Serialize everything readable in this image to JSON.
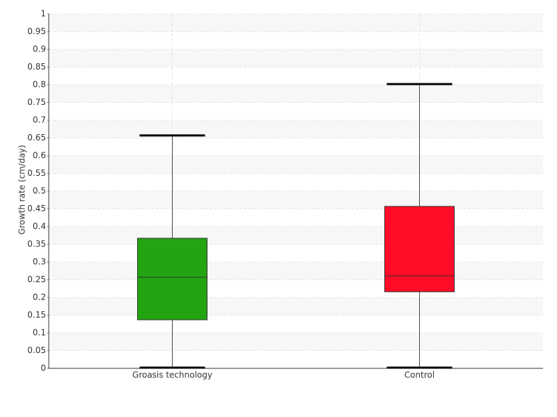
{
  "chart_data": {
    "type": "box",
    "y_label": "Growth rate (cm/day)",
    "categories": [
      "Groasis technology",
      "Control"
    ],
    "boxes": [
      {
        "min": 0,
        "q1": 0.137,
        "median": 0.257,
        "q3": 0.367,
        "max": 0.657,
        "color": "#22a511"
      },
      {
        "min": 0,
        "q1": 0.216,
        "median": 0.261,
        "q3": 0.457,
        "max": 0.802,
        "color": "#ff0c28"
      }
    ],
    "ylim": [
      0,
      1
    ],
    "yticks": [
      0,
      0.05,
      0.1,
      0.15,
      0.2,
      0.25,
      0.3,
      0.35,
      0.4,
      0.45,
      0.5,
      0.55,
      0.6,
      0.65,
      0.7,
      0.75,
      0.8,
      0.85,
      0.9,
      0.95,
      1
    ],
    "grid": true
  }
}
